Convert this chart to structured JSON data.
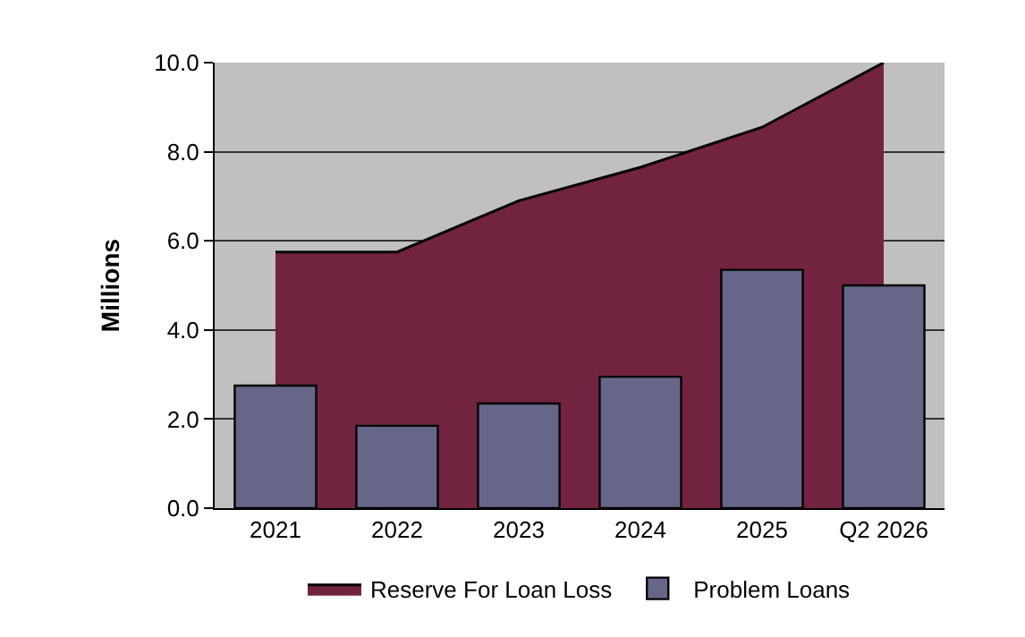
{
  "chart_data": {
    "type": "bar",
    "ylabel": "Millions",
    "categories": [
      "2021",
      "2022",
      "2023",
      "2024",
      "2025",
      "Q2 2026"
    ],
    "series": [
      {
        "name": "Reserve For Loan Loss",
        "type": "area",
        "color": "#722340",
        "values": [
          5.75,
          5.75,
          6.9,
          7.65,
          8.55,
          10.0
        ]
      },
      {
        "name": "Problem Loans",
        "color": "#666688",
        "values": [
          2.75,
          1.85,
          2.35,
          2.95,
          5.35,
          5.0
        ]
      }
    ],
    "ylim": [
      0,
      10
    ],
    "yticks": [
      {
        "value": 0,
        "label": "0.0"
      },
      {
        "value": 2,
        "label": "2.0"
      },
      {
        "value": 4,
        "label": "4.0"
      },
      {
        "value": 6,
        "label": "6.0"
      },
      {
        "value": 8,
        "label": "8.0"
      },
      {
        "value": 10,
        "label": "10.0"
      }
    ],
    "grid": "y",
    "legend": "bottom"
  }
}
